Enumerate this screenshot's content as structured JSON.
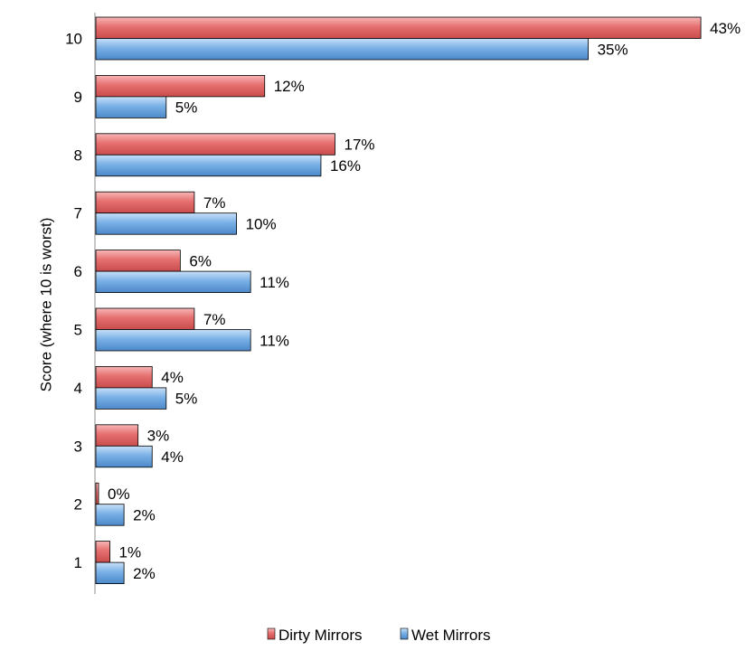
{
  "chart_data": {
    "type": "bar",
    "orientation": "horizontal",
    "title": "",
    "xlabel": "",
    "ylabel": "Score (where 10 is worst)",
    "categories": [
      "10",
      "9",
      "8",
      "7",
      "6",
      "5",
      "4",
      "3",
      "2",
      "1"
    ],
    "xlim": [
      0,
      50
    ],
    "grid": false,
    "legend_position": "bottom",
    "value_suffix": "%",
    "series": [
      {
        "name": "Dirty Mirrors",
        "color": "#e06666",
        "values": [
          43,
          12,
          17,
          7,
          6,
          7,
          4,
          3,
          0,
          1
        ]
      },
      {
        "name": "Wet Mirrors",
        "color": "#6fa8dc",
        "values": [
          35,
          5,
          16,
          10,
          11,
          11,
          5,
          4,
          2,
          2
        ]
      }
    ]
  }
}
